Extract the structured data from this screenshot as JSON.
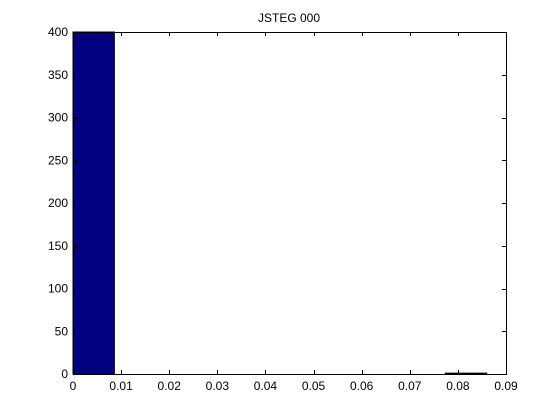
{
  "chart_data": {
    "type": "bar",
    "title": "JSTEG 000",
    "xlabel": "",
    "ylabel": "",
    "xlim": [
      0,
      0.09
    ],
    "ylim": [
      0,
      400
    ],
    "x_ticks": [
      0,
      0.01,
      0.02,
      0.03,
      0.04,
      0.05,
      0.06,
      0.07,
      0.08,
      0.09
    ],
    "x_tick_labels": [
      "0",
      "0.01",
      "0.02",
      "0.03",
      "0.04",
      "0.05",
      "0.06",
      "0.07",
      "0.08",
      "0.09"
    ],
    "y_ticks": [
      0,
      50,
      100,
      150,
      200,
      250,
      300,
      350,
      400
    ],
    "y_tick_labels": [
      "0",
      "50",
      "100",
      "150",
      "200",
      "250",
      "300",
      "350",
      "400"
    ],
    "grid": false,
    "bar_color": "#000080",
    "bins": [
      {
        "x0": 0,
        "x1": 0.0086,
        "value": 400
      },
      {
        "x0": 0.0774,
        "x1": 0.086,
        "value": 1
      }
    ]
  }
}
